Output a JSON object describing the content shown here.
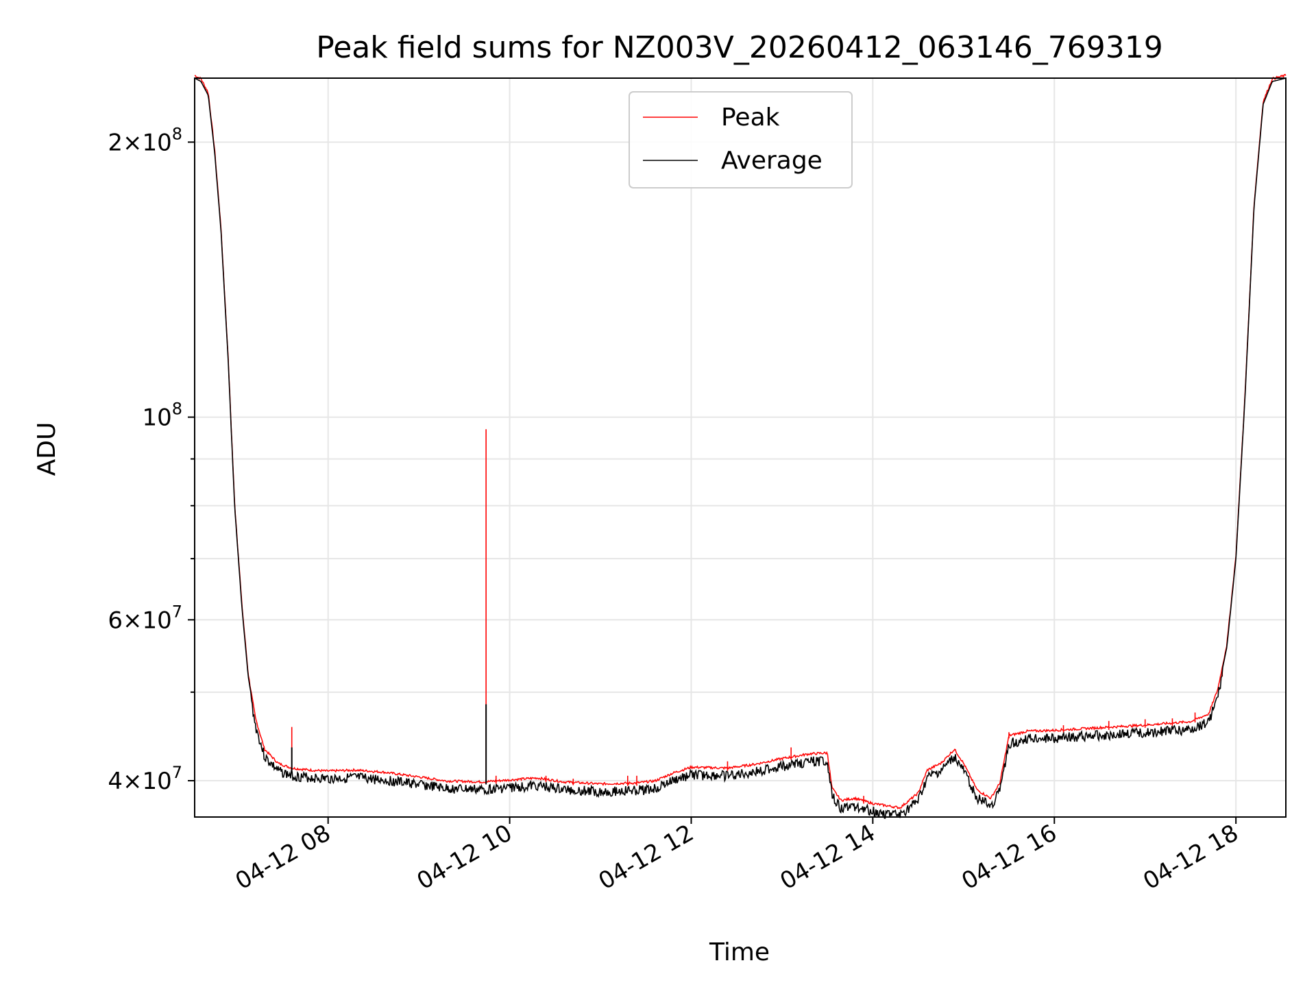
{
  "chart_data": {
    "type": "line",
    "title": "Peak field sums for NZ003V_20260412_063146_769319",
    "xlabel": "Time",
    "ylabel": "ADU",
    "yscale": "log",
    "xlim": [
      6.53,
      18.55
    ],
    "ylim": [
      36500000,
      235000000
    ],
    "grid": true,
    "legend": {
      "position": "top-center",
      "entries": [
        "Peak",
        "Average"
      ]
    },
    "x_ticks": [
      {
        "value": 8,
        "label": "04-12 08"
      },
      {
        "value": 10,
        "label": "04-12 10"
      },
      {
        "value": 12,
        "label": "04-12 12"
      },
      {
        "value": 14,
        "label": "04-12 14"
      },
      {
        "value": 16,
        "label": "04-12 16"
      },
      {
        "value": 18,
        "label": "04-12 18"
      }
    ],
    "y_major_ticks": [
      {
        "value": 40000000,
        "mant": "4",
        "exp": "7"
      },
      {
        "value": 60000000,
        "mant": "6",
        "exp": "7"
      },
      {
        "value": 100000000,
        "mant": "",
        "exp": "8"
      },
      {
        "value": 200000000,
        "mant": "2",
        "exp": "8"
      }
    ],
    "y_minor_ticks": [
      50000000,
      70000000,
      80000000,
      90000000
    ],
    "colors": {
      "peak": "#ff0000",
      "average": "#000000"
    },
    "series": [
      {
        "name": "Average",
        "unit": "ADU",
        "points": [
          [
            6.53,
            235000000
          ],
          [
            6.6,
            233000000
          ],
          [
            6.68,
            225000000
          ],
          [
            6.75,
            195000000
          ],
          [
            6.82,
            160000000
          ],
          [
            6.9,
            115000000
          ],
          [
            6.97,
            80000000
          ],
          [
            7.05,
            62000000
          ],
          [
            7.12,
            52000000
          ],
          [
            7.2,
            46500000
          ],
          [
            7.3,
            43000000
          ],
          [
            7.45,
            41500000
          ],
          [
            7.6,
            41000000
          ],
          [
            7.8,
            40800000
          ],
          [
            8.0,
            40700000
          ],
          [
            8.3,
            40800000
          ],
          [
            8.6,
            40600000
          ],
          [
            9.0,
            40100000
          ],
          [
            9.3,
            39700000
          ],
          [
            9.7,
            39600000
          ],
          [
            10.0,
            39800000
          ],
          [
            10.3,
            40000000
          ],
          [
            10.6,
            39600000
          ],
          [
            11.0,
            39400000
          ],
          [
            11.4,
            39500000
          ],
          [
            11.6,
            39700000
          ],
          [
            11.8,
            40500000
          ],
          [
            12.0,
            41100000
          ],
          [
            12.4,
            41000000
          ],
          [
            12.7,
            41400000
          ],
          [
            13.0,
            42000000
          ],
          [
            13.3,
            42500000
          ],
          [
            13.5,
            42600000
          ],
          [
            13.55,
            39000000
          ],
          [
            13.65,
            37800000
          ],
          [
            13.8,
            38000000
          ],
          [
            14.0,
            37500000
          ],
          [
            14.3,
            37100000
          ],
          [
            14.5,
            38500000
          ],
          [
            14.6,
            40800000
          ],
          [
            14.75,
            41500000
          ],
          [
            14.9,
            43000000
          ],
          [
            15.0,
            41500000
          ],
          [
            15.15,
            38800000
          ],
          [
            15.3,
            38000000
          ],
          [
            15.4,
            39500000
          ],
          [
            15.5,
            44500000
          ],
          [
            15.7,
            45000000
          ],
          [
            16.0,
            45100000
          ],
          [
            16.5,
            45400000
          ],
          [
            17.0,
            45700000
          ],
          [
            17.5,
            46100000
          ],
          [
            17.7,
            47000000
          ],
          [
            17.8,
            50000000
          ],
          [
            17.9,
            56000000
          ],
          [
            18.0,
            70000000
          ],
          [
            18.1,
            105000000
          ],
          [
            18.2,
            170000000
          ],
          [
            18.3,
            220000000
          ],
          [
            18.4,
            233000000
          ],
          [
            18.55,
            235000000
          ]
        ]
      },
      {
        "name": "Peak",
        "unit": "ADU",
        "baseline": "follows Average",
        "spikes": [
          [
            7.6,
            45800000
          ],
          [
            9.74,
            97000000
          ],
          [
            9.85,
            40500000
          ],
          [
            10.4,
            40500000
          ],
          [
            10.7,
            40200000
          ],
          [
            11.3,
            40500000
          ],
          [
            11.4,
            40500000
          ],
          [
            12.4,
            42000000
          ],
          [
            13.1,
            43500000
          ],
          [
            13.9,
            38500000
          ],
          [
            15.5,
            45200000
          ],
          [
            16.1,
            46000000
          ],
          [
            16.6,
            46500000
          ],
          [
            17.0,
            46700000
          ],
          [
            17.3,
            46800000
          ],
          [
            17.55,
            47500000
          ],
          [
            17.85,
            52000000
          ]
        ]
      }
    ]
  }
}
